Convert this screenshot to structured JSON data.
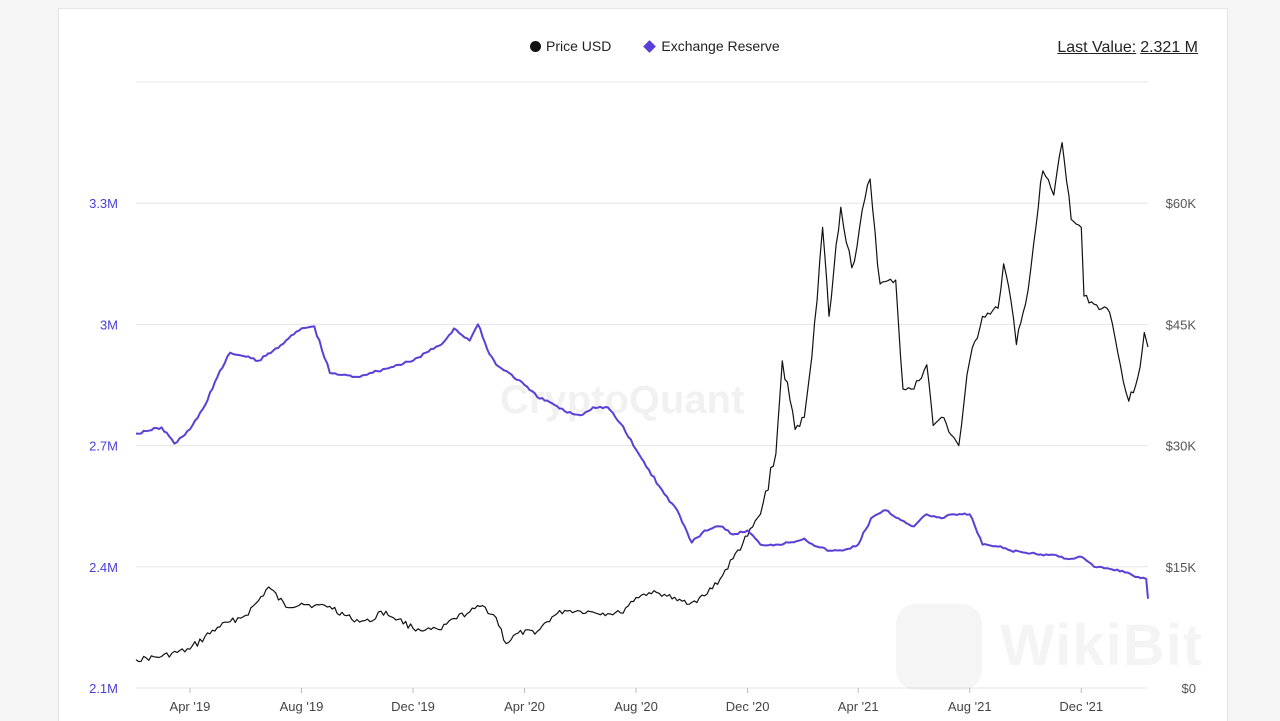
{
  "legend": {
    "price_label": "Price USD",
    "reserve_label": "Exchange Reserve"
  },
  "last_value": {
    "label": "Last Value:",
    "value": "2.321 M"
  },
  "watermark": "CryptoQuant",
  "brand_watermark": "WikiBit",
  "colors": {
    "price": "#111111",
    "reserve": "#5b3fd6",
    "grid": "#e6e6e6"
  },
  "chart_data": {
    "type": "line",
    "x_ticks": [
      "Apr '19",
      "Aug '19",
      "Dec '19",
      "Apr '20",
      "Aug '20",
      "Dec '20",
      "Apr '21",
      "Aug '21",
      "Dec '21"
    ],
    "y_left_ticks": [
      "2.1M",
      "2.4M",
      "2.7M",
      "3M",
      "3.3M"
    ],
    "y_right_ticks": [
      "$0",
      "$15K",
      "$30K",
      "$45K",
      "$60K"
    ],
    "y_left_range": [
      2100000,
      3600000
    ],
    "y_right_range": [
      0,
      75000
    ],
    "grid": true,
    "legend_position": "top-center",
    "series": [
      {
        "name": "Exchange Reserve",
        "axis": "left",
        "x": [
          "2019-02-01",
          "2019-03-01",
          "2019-03-15",
          "2019-04-01",
          "2019-04-15",
          "2019-05-01",
          "2019-05-15",
          "2019-06-01",
          "2019-06-15",
          "2019-07-01",
          "2019-07-15",
          "2019-08-01",
          "2019-08-15",
          "2019-09-01",
          "2019-09-15",
          "2019-10-01",
          "2019-10-15",
          "2019-11-01",
          "2019-11-15",
          "2019-12-01",
          "2019-12-15",
          "2020-01-01",
          "2020-01-15",
          "2020-02-01",
          "2020-02-10",
          "2020-02-20",
          "2020-03-01",
          "2020-03-15",
          "2020-04-01",
          "2020-04-15",
          "2020-05-01",
          "2020-05-15",
          "2020-06-01",
          "2020-06-15",
          "2020-07-01",
          "2020-07-15",
          "2020-08-01",
          "2020-08-15",
          "2020-09-01",
          "2020-09-15",
          "2020-10-01",
          "2020-10-15",
          "2020-11-01",
          "2020-11-15",
          "2020-12-01",
          "2020-12-15",
          "2021-01-01",
          "2021-01-15",
          "2021-02-01",
          "2021-02-15",
          "2021-03-01",
          "2021-03-15",
          "2021-04-01",
          "2021-04-15",
          "2021-05-01",
          "2021-05-15",
          "2021-06-01",
          "2021-06-15",
          "2021-07-01",
          "2021-07-15",
          "2021-08-01",
          "2021-08-15",
          "2021-09-01",
          "2021-09-15",
          "2021-10-01",
          "2021-10-15",
          "2021-11-01",
          "2021-11-15",
          "2021-12-01",
          "2021-12-15",
          "2022-01-01",
          "2022-01-15",
          "2022-02-01",
          "2022-02-10",
          "2022-02-12"
        ],
        "values": [
          2730000,
          2745000,
          2705000,
          2740000,
          2790000,
          2870000,
          2930000,
          2920000,
          2910000,
          2935000,
          2960000,
          2990000,
          2995000,
          2880000,
          2875000,
          2870000,
          2880000,
          2890000,
          2900000,
          2910000,
          2930000,
          2950000,
          2990000,
          2960000,
          3000000,
          2940000,
          2900000,
          2880000,
          2850000,
          2820000,
          2805000,
          2785000,
          2775000,
          2795000,
          2795000,
          2755000,
          2690000,
          2640000,
          2580000,
          2540000,
          2460000,
          2490000,
          2500000,
          2480000,
          2490000,
          2455000,
          2455000,
          2460000,
          2470000,
          2450000,
          2440000,
          2440000,
          2455000,
          2520000,
          2540000,
          2520000,
          2500000,
          2530000,
          2520000,
          2530000,
          2530000,
          2455000,
          2450000,
          2440000,
          2435000,
          2430000,
          2430000,
          2420000,
          2425000,
          2400000,
          2395000,
          2390000,
          2375000,
          2370000,
          2321000
        ]
      },
      {
        "name": "Price USD",
        "axis": "right",
        "x": [
          "2019-02-01",
          "2019-03-01",
          "2019-04-01",
          "2019-05-01",
          "2019-05-15",
          "2019-06-01",
          "2019-06-15",
          "2019-06-26",
          "2019-07-15",
          "2019-08-01",
          "2019-08-15",
          "2019-09-01",
          "2019-09-25",
          "2019-10-15",
          "2019-10-27",
          "2019-11-15",
          "2019-12-01",
          "2019-12-15",
          "2020-01-01",
          "2020-01-15",
          "2020-02-01",
          "2020-02-15",
          "2020-03-01",
          "2020-03-12",
          "2020-03-25",
          "2020-04-15",
          "2020-05-01",
          "2020-05-15",
          "2020-06-01",
          "2020-06-15",
          "2020-07-01",
          "2020-07-15",
          "2020-08-01",
          "2020-08-15",
          "2020-09-01",
          "2020-09-15",
          "2020-10-01",
          "2020-10-15",
          "2020-11-01",
          "2020-11-15",
          "2020-12-01",
          "2020-12-15",
          "2021-01-01",
          "2021-01-08",
          "2021-01-22",
          "2021-02-01",
          "2021-02-15",
          "2021-02-21",
          "2021-02-28",
          "2021-03-13",
          "2021-03-25",
          "2021-04-14",
          "2021-04-25",
          "2021-05-12",
          "2021-05-20",
          "2021-06-01",
          "2021-06-15",
          "2021-06-22",
          "2021-07-01",
          "2021-07-20",
          "2021-08-01",
          "2021-08-15",
          "2021-09-01",
          "2021-09-07",
          "2021-09-15",
          "2021-09-21",
          "2021-10-01",
          "2021-10-10",
          "2021-10-20",
          "2021-11-01",
          "2021-11-10",
          "2021-11-20",
          "2021-12-01",
          "2021-12-04",
          "2021-12-15",
          "2022-01-01",
          "2022-01-10",
          "2022-01-22",
          "2022-02-01",
          "2022-02-08",
          "2022-02-12"
        ],
        "values": [
          3500,
          3900,
          4800,
          7500,
          8200,
          9000,
          10800,
          12500,
          10000,
          10500,
          10200,
          10100,
          8500,
          8200,
          9500,
          8500,
          7400,
          7200,
          7200,
          8600,
          9400,
          10200,
          8700,
          5500,
          6800,
          7000,
          8800,
          9600,
          9500,
          9400,
          9200,
          9300,
          11200,
          11800,
          11600,
          10800,
          10600,
          11400,
          13500,
          16000,
          18800,
          21500,
          29000,
          40500,
          32000,
          33500,
          48000,
          57000,
          46000,
          59500,
          52000,
          63000,
          50000,
          50500,
          37000,
          37000,
          40000,
          32500,
          33500,
          30000,
          40500,
          46000,
          47000,
          52500,
          48000,
          42500,
          47500,
          55000,
          64000,
          61000,
          67500,
          58000,
          57000,
          48500,
          47500,
          46500,
          41500,
          35500,
          38500,
          44000,
          42200
        ]
      }
    ]
  }
}
